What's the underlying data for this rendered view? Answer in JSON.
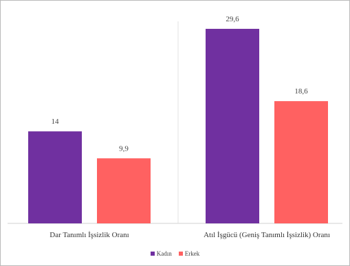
{
  "chart_data": {
    "type": "bar",
    "title": "",
    "xlabel": "",
    "ylabel": "",
    "categories": [
      "Dar Tanımlı İşsizlik Oranı",
      "Atıl İşgücü (Geniş Tanımlı İşsizlik) Oranı"
    ],
    "series": [
      {
        "name": "Kadın",
        "values": [
          14,
          29.6
        ],
        "value_labels": [
          "14",
          "29,6"
        ],
        "color": "#7030a0"
      },
      {
        "name": "Erkek",
        "values": [
          9.9,
          18.6
        ],
        "value_labels": [
          "9,9",
          "18,6"
        ],
        "color": "#ff6161"
      }
    ],
    "ylim": [
      0,
      32
    ],
    "grid": false,
    "legend_position": "bottom"
  }
}
